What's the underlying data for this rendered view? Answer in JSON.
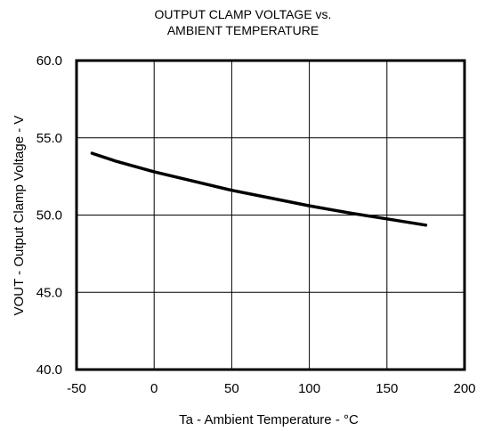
{
  "chart_data": {
    "type": "line",
    "title_lines": [
      "OUTPUT  CLAMP VOLTAGE  vs.",
      "AMBIENT  TEMPERATURE"
    ],
    "xlabel": "Ta - Ambient Temperature  - °C",
    "ylabel": "VOUT - Output Clamp Voltage - V",
    "xlim": [
      -50,
      200
    ],
    "ylim": [
      40,
      60
    ],
    "xticks": [
      -50,
      0,
      50,
      100,
      150,
      200
    ],
    "xtick_labels": [
      "-50",
      "0",
      "50",
      "100",
      "150",
      "200"
    ],
    "yticks": [
      40,
      45,
      50,
      55,
      60
    ],
    "ytick_labels": [
      "40.0",
      "45.0",
      "50.0",
      "55.0",
      "60.0"
    ],
    "grid": true,
    "series": [
      {
        "color": "#000000",
        "x": [
          -40,
          -25,
          0,
          25,
          50,
          75,
          100,
          125,
          150,
          175
        ],
        "y": [
          54.0,
          53.5,
          52.8,
          52.2,
          51.6,
          51.1,
          50.6,
          50.15,
          49.75,
          49.35
        ]
      }
    ]
  }
}
